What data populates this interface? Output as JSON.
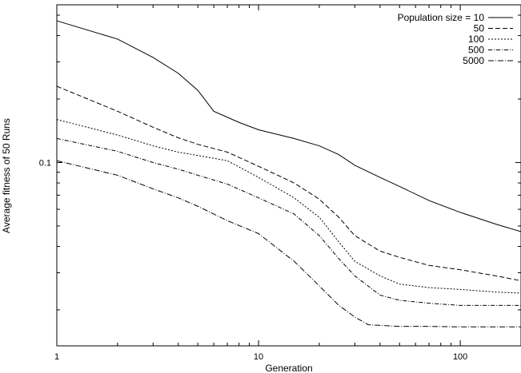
{
  "chart_data": {
    "type": "line",
    "title": "",
    "xlabel": "Generation",
    "ylabel": "Average fitness of 50 Runs",
    "xscale": "log",
    "yscale": "log",
    "xlim": [
      1,
      200
    ],
    "ylim": [
      0.0135,
      0.56
    ],
    "x_ticks": [
      1,
      10,
      100
    ],
    "x_tick_labels": [
      "1",
      "10",
      "100"
    ],
    "y_ticks": [
      0.1
    ],
    "y_tick_labels": [
      "0.1"
    ],
    "grid": false,
    "legend_position": "top-right",
    "series": [
      {
        "name": "Population size = 10",
        "dash": "",
        "points": [
          [
            1,
            0.47
          ],
          [
            2,
            0.385
          ],
          [
            3,
            0.315
          ],
          [
            4,
            0.265
          ],
          [
            5,
            0.22
          ],
          [
            6,
            0.175
          ],
          [
            8,
            0.155
          ],
          [
            10,
            0.143
          ],
          [
            15,
            0.13
          ],
          [
            20,
            0.12
          ],
          [
            25,
            0.109
          ],
          [
            30,
            0.097
          ],
          [
            40,
            0.085
          ],
          [
            50,
            0.077
          ],
          [
            70,
            0.066
          ],
          [
            100,
            0.058
          ],
          [
            150,
            0.051
          ],
          [
            200,
            0.047
          ]
        ]
      },
      {
        "name": "50",
        "dash": "6,3",
        "points": [
          [
            1,
            0.23
          ],
          [
            2,
            0.175
          ],
          [
            3,
            0.147
          ],
          [
            4,
            0.131
          ],
          [
            5,
            0.122
          ],
          [
            7,
            0.112
          ],
          [
            10,
            0.096
          ],
          [
            15,
            0.08
          ],
          [
            20,
            0.067
          ],
          [
            25,
            0.055
          ],
          [
            30,
            0.045
          ],
          [
            40,
            0.038
          ],
          [
            50,
            0.0355
          ],
          [
            70,
            0.0325
          ],
          [
            100,
            0.031
          ],
          [
            150,
            0.029
          ],
          [
            200,
            0.0275
          ]
        ]
      },
      {
        "name": "100",
        "dash": "2,2",
        "points": [
          [
            1,
            0.16
          ],
          [
            2,
            0.135
          ],
          [
            3,
            0.12
          ],
          [
            4,
            0.112
          ],
          [
            5,
            0.108
          ],
          [
            7,
            0.102
          ],
          [
            10,
            0.085
          ],
          [
            15,
            0.068
          ],
          [
            20,
            0.055
          ],
          [
            25,
            0.042
          ],
          [
            30,
            0.034
          ],
          [
            40,
            0.029
          ],
          [
            50,
            0.0265
          ],
          [
            70,
            0.0255
          ],
          [
            100,
            0.025
          ],
          [
            150,
            0.0243
          ],
          [
            200,
            0.024
          ]
        ]
      },
      {
        "name": "500",
        "dash": "5,2,1,2",
        "points": [
          [
            1,
            0.13
          ],
          [
            2,
            0.113
          ],
          [
            3,
            0.1
          ],
          [
            4,
            0.093
          ],
          [
            5,
            0.087
          ],
          [
            7,
            0.079
          ],
          [
            10,
            0.068
          ],
          [
            15,
            0.057
          ],
          [
            20,
            0.045
          ],
          [
            25,
            0.035
          ],
          [
            30,
            0.029
          ],
          [
            40,
            0.0235
          ],
          [
            50,
            0.0222
          ],
          [
            70,
            0.0215
          ],
          [
            100,
            0.021
          ],
          [
            150,
            0.021
          ],
          [
            200,
            0.021
          ]
        ]
      },
      {
        "name": "5000",
        "dash": "7,2,1,2",
        "points": [
          [
            1,
            0.102
          ],
          [
            2,
            0.087
          ],
          [
            3,
            0.075
          ],
          [
            4,
            0.068
          ],
          [
            5,
            0.062
          ],
          [
            7,
            0.053
          ],
          [
            10,
            0.046
          ],
          [
            15,
            0.034
          ],
          [
            20,
            0.026
          ],
          [
            25,
            0.021
          ],
          [
            30,
            0.0185
          ],
          [
            35,
            0.017
          ],
          [
            50,
            0.0167
          ],
          [
            70,
            0.0167
          ],
          [
            100,
            0.0166
          ],
          [
            150,
            0.0166
          ],
          [
            200,
            0.0166
          ]
        ]
      }
    ]
  }
}
